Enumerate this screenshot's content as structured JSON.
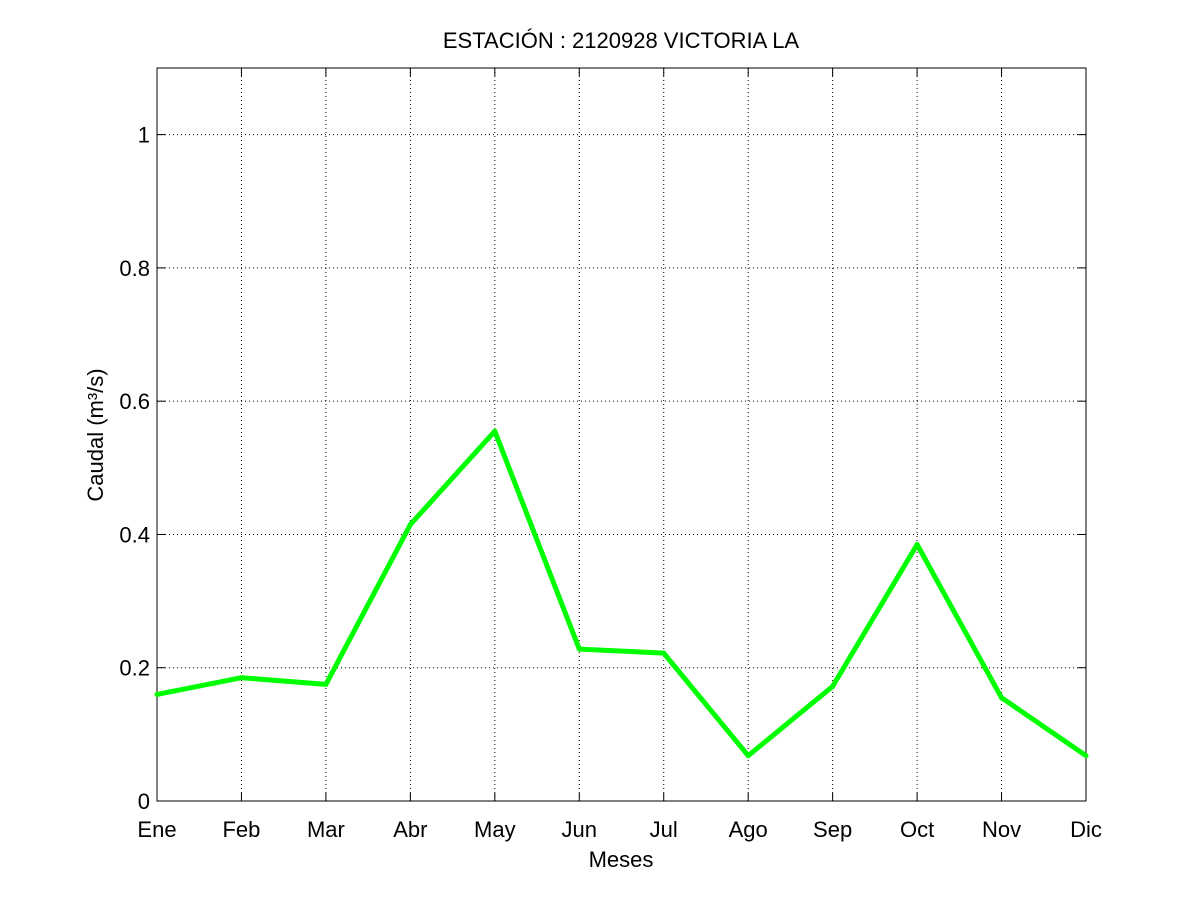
{
  "chart_data": {
    "type": "line",
    "title": "ESTACIÓN :  2120928  VICTORIA LA",
    "xlabel": "Meses",
    "ylabel": "Caudal (m³/s)",
    "categories": [
      "Ene",
      "Feb",
      "Mar",
      "Abr",
      "May",
      "Jun",
      "Jul",
      "Ago",
      "Sep",
      "Oct",
      "Nov",
      "Dic"
    ],
    "ylim": [
      0,
      1.1
    ],
    "yticks": [
      {
        "value": 0,
        "label": "0"
      },
      {
        "value": 0.2,
        "label": "0.2"
      },
      {
        "value": 0.4,
        "label": "0.4"
      },
      {
        "value": 0.6,
        "label": "0.6"
      },
      {
        "value": 0.8,
        "label": "0.8"
      },
      {
        "value": 1,
        "label": "1"
      }
    ],
    "grid": true,
    "series": [
      {
        "color": "#00ff00",
        "values": [
          0.16,
          0.185,
          0.175,
          0.415,
          0.555,
          0.228,
          0.222,
          0.068,
          0.172,
          0.385,
          0.155,
          0.068
        ]
      }
    ]
  }
}
